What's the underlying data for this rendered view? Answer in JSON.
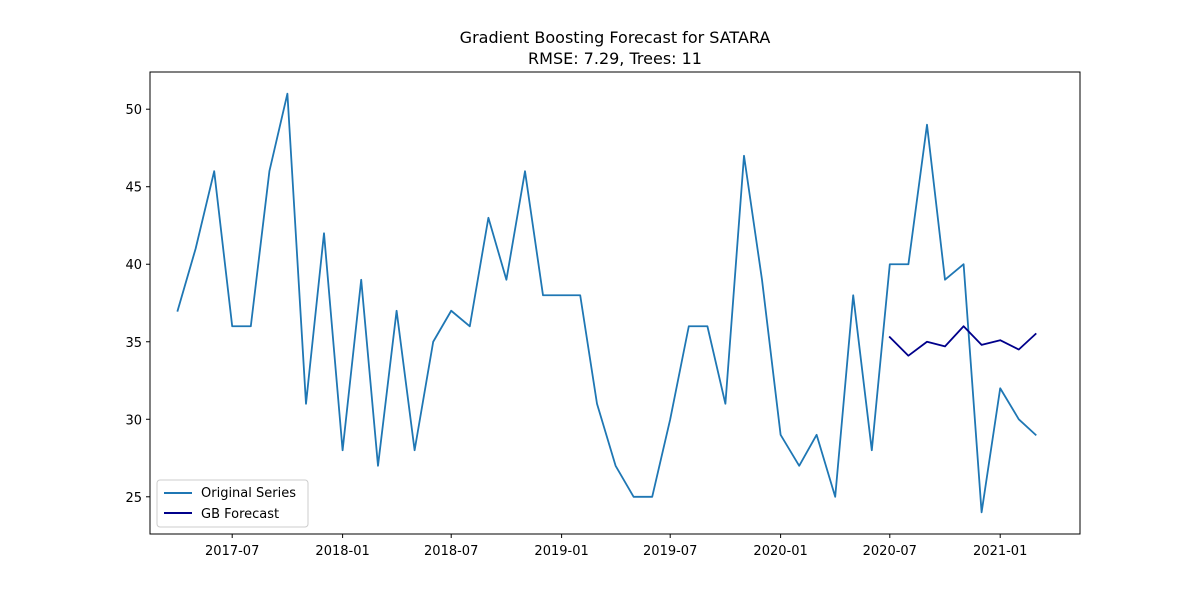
{
  "chart_data": {
    "type": "line",
    "title": "Gradient Boosting Forecast for SATARA",
    "subtitle": "RMSE: 7.29, Trees: 11",
    "xlabel": "",
    "ylabel": "",
    "xlim": [
      "2017-02-14",
      "2021-05-14"
    ],
    "ylim": [
      22.6,
      52.4
    ],
    "yticks": [
      25,
      30,
      35,
      40,
      45,
      50
    ],
    "xticks": [
      "2017-07-01",
      "2018-01-01",
      "2018-07-01",
      "2019-01-01",
      "2019-07-01",
      "2020-01-01",
      "2020-07-01",
      "2021-01-01"
    ],
    "xtick_labels": [
      "2017-07",
      "2018-01",
      "2018-07",
      "2019-01",
      "2019-07",
      "2020-01",
      "2020-07",
      "2021-01"
    ],
    "grid": false,
    "legend_position": "lower-left",
    "series": [
      {
        "name": "Original Series",
        "color": "#1f77b4",
        "x": [
          "2017-04-01",
          "2017-05-01",
          "2017-06-01",
          "2017-07-01",
          "2017-08-01",
          "2017-09-01",
          "2017-10-01",
          "2017-11-01",
          "2017-12-01",
          "2018-01-01",
          "2018-02-01",
          "2018-03-01",
          "2018-04-01",
          "2018-05-01",
          "2018-06-01",
          "2018-07-01",
          "2018-08-01",
          "2018-09-01",
          "2018-10-01",
          "2018-11-01",
          "2018-12-01",
          "2019-01-01",
          "2019-02-01",
          "2019-03-01",
          "2019-04-01",
          "2019-05-01",
          "2019-06-01",
          "2019-07-01",
          "2019-08-01",
          "2019-09-01",
          "2019-10-01",
          "2019-11-01",
          "2019-12-01",
          "2020-01-01",
          "2020-02-01",
          "2020-03-01",
          "2020-04-01",
          "2020-05-01",
          "2020-06-01",
          "2020-07-01",
          "2020-08-01",
          "2020-09-01",
          "2020-10-01",
          "2020-11-01",
          "2020-12-01",
          "2021-01-01",
          "2021-02-01",
          "2021-03-01"
        ],
        "values": [
          37,
          41,
          46,
          36,
          36,
          46,
          51,
          31,
          42,
          28,
          39,
          27,
          37,
          28,
          35,
          37,
          36,
          43,
          39,
          46,
          38,
          38,
          38,
          31,
          27,
          25,
          25,
          30,
          36,
          36,
          31,
          47,
          39,
          29,
          27,
          29,
          25,
          38,
          28,
          40,
          40,
          49,
          39,
          40,
          24,
          32,
          30,
          29
        ]
      },
      {
        "name": "GB Forecast",
        "color": "#00008b",
        "x": [
          "2020-07-01",
          "2020-08-01",
          "2020-09-01",
          "2020-10-01",
          "2020-11-01",
          "2020-12-01",
          "2021-01-01",
          "2021-02-01",
          "2021-03-01"
        ],
        "values": [
          35.3,
          34.1,
          35.0,
          34.7,
          36.0,
          34.8,
          35.1,
          34.5,
          35.5
        ]
      }
    ]
  }
}
